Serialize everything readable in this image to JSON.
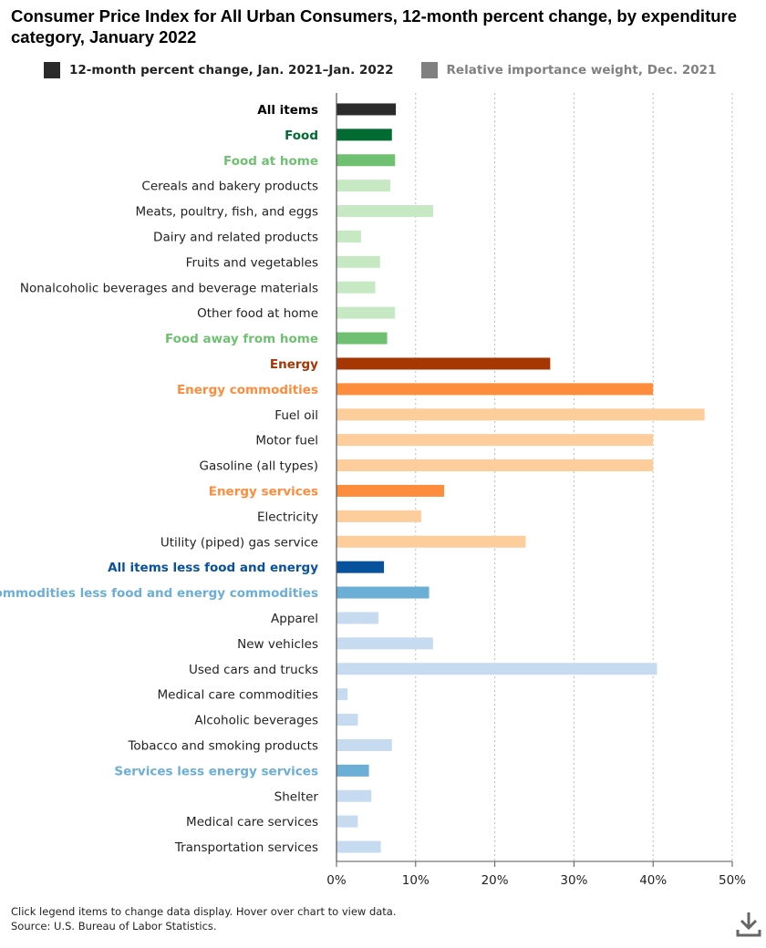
{
  "title": "Consumer Price Index for All Urban Consumers, 12-month percent change, by expenditure category, January 2022",
  "legend": [
    {
      "label": "12-month percent change, Jan. 2021–Jan. 2022",
      "color": "#2b2b2b",
      "active": true
    },
    {
      "label": "Relative importance weight, Dec. 2021",
      "color": "#808080",
      "active": false
    }
  ],
  "footer": {
    "note": "Click legend items to change data display. Hover over chart to view data.",
    "source": "Source: U.S. Bureau of Labor Statistics."
  },
  "icons": {
    "download": "download-icon"
  },
  "chart_data": {
    "type": "bar",
    "orientation": "horizontal",
    "categories": [
      "All items",
      "Food",
      "Food at home",
      "Cereals and bakery products",
      "Meats, poultry, fish, and eggs",
      "Dairy and related products",
      "Fruits and vegetables",
      "Nonalcoholic beverages and beverage materials",
      "Other food at home",
      "Food away from home",
      "Energy",
      "Energy commodities",
      "Fuel oil",
      "Motor fuel",
      "Gasoline (all types)",
      "Energy services",
      "Electricity",
      "Utility (piped) gas service",
      "All items less food and energy",
      "Commodities less food and energy commodities",
      "Apparel",
      "New vehicles",
      "Used cars and trucks",
      "Medical care commodities",
      "Alcoholic beverages",
      "Tobacco and smoking products",
      "Services less energy services",
      "Shelter",
      "Medical care services",
      "Transportation services"
    ],
    "values": [
      7.5,
      7.0,
      7.4,
      6.8,
      12.2,
      3.1,
      5.5,
      4.9,
      7.4,
      6.4,
      27.0,
      40.0,
      46.5,
      40.0,
      40.0,
      13.6,
      10.7,
      23.9,
      6.0,
      11.7,
      5.3,
      12.2,
      40.5,
      1.4,
      2.7,
      7.0,
      4.1,
      4.4,
      2.7,
      5.6
    ],
    "bar_colors": [
      "#2b2b2b",
      "#016b32",
      "#70c072",
      "#c6e8c3",
      "#c6e8c3",
      "#c6e8c3",
      "#c6e8c3",
      "#c6e8c3",
      "#c6e8c3",
      "#70c072",
      "#a63603",
      "#fd8d3c",
      "#fdcd9b",
      "#fdcd9b",
      "#fdcd9b",
      "#fd8d3c",
      "#fdcd9b",
      "#fdcd9b",
      "#08519c",
      "#6baed6",
      "#c6dbef",
      "#c6dbef",
      "#c6dbef",
      "#c6dbef",
      "#c6dbef",
      "#c6dbef",
      "#6baed6",
      "#c6dbef",
      "#c6dbef",
      "#c6dbef"
    ],
    "label_colors": [
      "#000000",
      "#016b32",
      "#70c072",
      "#222222",
      "#222222",
      "#222222",
      "#222222",
      "#222222",
      "#222222",
      "#70c072",
      "#a63603",
      "#fd8d3c",
      "#222222",
      "#222222",
      "#222222",
      "#fd8d3c",
      "#222222",
      "#222222",
      "#08519c",
      "#6baed6",
      "#222222",
      "#222222",
      "#222222",
      "#222222",
      "#222222",
      "#222222",
      "#6baed6",
      "#222222",
      "#222222",
      "#222222"
    ],
    "label_bold": [
      true,
      true,
      true,
      false,
      false,
      false,
      false,
      false,
      false,
      true,
      true,
      true,
      false,
      false,
      false,
      true,
      false,
      false,
      true,
      true,
      false,
      false,
      false,
      false,
      false,
      false,
      true,
      false,
      false,
      false
    ],
    "xticks": [
      "0%",
      "10%",
      "20%",
      "30%",
      "40%",
      "50%"
    ],
    "xlim": [
      0,
      50
    ],
    "grid": true,
    "grid_style": "dotted vertical"
  }
}
